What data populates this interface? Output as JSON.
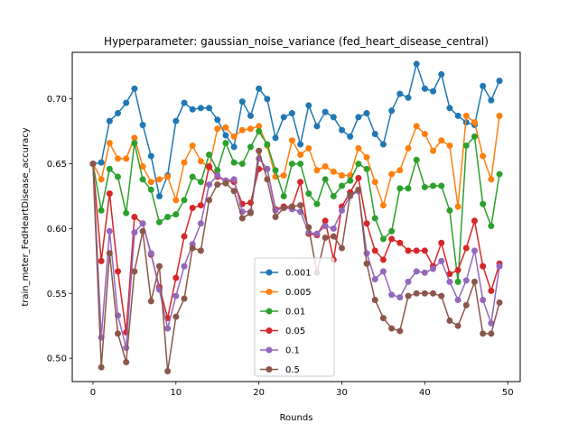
{
  "chart_data": {
    "type": "line",
    "title": "Hyperparameter: gaussian_noise_variance (fed_heart_disease_central)",
    "xlabel": "Rounds",
    "ylabel": "train_meter_FedHeartDisease_accuracy",
    "xlim": [
      -2.5,
      51.5
    ],
    "ylim": [
      0.482,
      0.736
    ],
    "xticks": [
      0,
      10,
      20,
      30,
      40,
      50
    ],
    "yticks": [
      0.5,
      0.55,
      0.6,
      0.65,
      0.7
    ],
    "ytick_labels": [
      "0.50",
      "0.55",
      "0.60",
      "0.65",
      "0.70"
    ],
    "grid": false,
    "legend_position": "lower-center",
    "x": [
      0,
      1,
      2,
      3,
      4,
      5,
      6,
      7,
      8,
      9,
      10,
      11,
      12,
      13,
      14,
      15,
      16,
      17,
      18,
      19,
      20,
      21,
      22,
      23,
      24,
      25,
      26,
      27,
      28,
      29,
      30,
      31,
      32,
      33,
      34,
      35,
      36,
      37,
      38,
      39,
      40,
      41,
      42,
      43,
      44,
      45,
      46,
      47,
      48,
      49
    ],
    "series": [
      {
        "name": "0.001",
        "color": "#1f77b4",
        "values": [
          0.65,
          0.651,
          0.683,
          0.689,
          0.697,
          0.708,
          0.68,
          0.656,
          0.625,
          0.641,
          0.683,
          0.697,
          0.692,
          0.693,
          0.693,
          0.684,
          0.672,
          0.663,
          0.698,
          0.687,
          0.708,
          0.7,
          0.67,
          0.686,
          0.689,
          0.665,
          0.695,
          0.679,
          0.69,
          0.686,
          0.676,
          0.671,
          0.686,
          0.689,
          0.673,
          0.665,
          0.691,
          0.704,
          0.701,
          0.727,
          0.708,
          0.706,
          0.719,
          0.693,
          0.687,
          0.682,
          0.68,
          0.71,
          0.699,
          0.714
        ]
      },
      {
        "name": "0.005",
        "color": "#ff7f0e",
        "values": [
          0.65,
          0.638,
          0.666,
          0.654,
          0.654,
          0.67,
          0.648,
          0.636,
          0.638,
          0.64,
          0.622,
          0.651,
          0.664,
          0.652,
          0.647,
          0.677,
          0.678,
          0.671,
          0.676,
          0.677,
          0.679,
          0.664,
          0.64,
          0.641,
          0.668,
          0.657,
          0.662,
          0.645,
          0.648,
          0.644,
          0.641,
          0.641,
          0.662,
          0.655,
          0.636,
          0.618,
          0.642,
          0.645,
          0.662,
          0.679,
          0.673,
          0.66,
          0.668,
          0.664,
          0.617,
          0.687,
          0.682,
          0.656,
          0.638,
          0.687
        ]
      },
      {
        "name": "0.01",
        "color": "#2ca02c",
        "values": [
          0.65,
          0.614,
          0.646,
          0.64,
          0.612,
          0.666,
          0.638,
          0.63,
          0.605,
          0.609,
          0.611,
          0.622,
          0.64,
          0.636,
          0.657,
          0.645,
          0.666,
          0.651,
          0.65,
          0.663,
          0.675,
          0.665,
          0.645,
          0.625,
          0.65,
          0.65,
          0.627,
          0.619,
          0.638,
          0.625,
          0.633,
          0.637,
          0.65,
          0.646,
          0.608,
          0.592,
          0.598,
          0.631,
          0.631,
          0.653,
          0.632,
          0.633,
          0.633,
          0.614,
          0.559,
          0.664,
          0.671,
          0.619,
          0.602,
          0.642
        ]
      },
      {
        "name": "0.05",
        "color": "#d62728",
        "values": [
          0.65,
          0.575,
          0.627,
          0.567,
          0.52,
          0.609,
          0.604,
          0.58,
          0.555,
          0.531,
          0.562,
          0.594,
          0.616,
          0.618,
          0.648,
          0.64,
          0.637,
          0.636,
          0.619,
          0.62,
          0.646,
          0.646,
          0.615,
          0.617,
          0.617,
          0.636,
          0.596,
          0.595,
          0.606,
          0.576,
          0.617,
          0.628,
          0.639,
          0.604,
          0.583,
          0.576,
          0.592,
          0.589,
          0.583,
          0.583,
          0.583,
          0.571,
          0.589,
          0.565,
          0.568,
          0.585,
          0.606,
          0.571,
          0.552,
          0.573
        ]
      },
      {
        "name": "0.1",
        "color": "#9467bd",
        "values": [
          0.65,
          0.516,
          0.598,
          0.533,
          0.508,
          0.597,
          0.604,
          0.581,
          0.553,
          0.523,
          0.548,
          0.571,
          0.588,
          0.604,
          0.634,
          0.641,
          0.637,
          0.638,
          0.613,
          0.613,
          0.654,
          0.646,
          0.614,
          0.616,
          0.615,
          0.613,
          0.597,
          0.596,
          0.602,
          0.6,
          0.614,
          0.625,
          0.629,
          0.581,
          0.561,
          0.567,
          0.549,
          0.547,
          0.559,
          0.567,
          0.566,
          0.569,
          0.575,
          0.559,
          0.545,
          0.56,
          0.583,
          0.545,
          0.527,
          0.571
        ]
      },
      {
        "name": "0.5",
        "color": "#8c564b",
        "values": [
          0.65,
          0.493,
          0.581,
          0.519,
          0.497,
          0.567,
          0.598,
          0.544,
          0.571,
          0.49,
          0.532,
          0.546,
          0.585,
          0.583,
          0.622,
          0.634,
          0.635,
          0.629,
          0.608,
          0.612,
          0.66,
          0.638,
          0.609,
          0.616,
          0.617,
          0.618,
          0.601,
          0.566,
          0.593,
          0.594,
          0.585,
          0.626,
          0.63,
          0.573,
          0.545,
          0.531,
          0.523,
          0.521,
          0.548,
          0.55,
          0.55,
          0.55,
          0.548,
          0.529,
          0.525,
          0.541,
          0.559,
          0.519,
          0.519,
          0.543
        ]
      }
    ]
  }
}
